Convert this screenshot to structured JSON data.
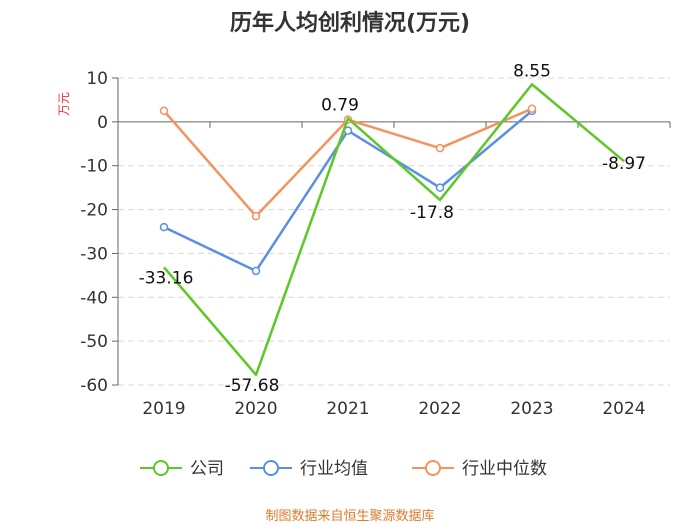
{
  "chart_data": {
    "type": "line",
    "title": "历年人均创利情况(万元)",
    "ylabel": "万元",
    "categories": [
      "2019",
      "2020",
      "2021",
      "2022",
      "2023",
      "2024"
    ],
    "yticks": [
      "10",
      "0",
      "-10",
      "-20",
      "-30",
      "-40",
      "-50",
      "-60"
    ],
    "ylim": [
      -60,
      10
    ],
    "grid": true,
    "legend_position": "bottom",
    "series": [
      {
        "name": "公司",
        "color": "#5cc827",
        "values": [
          -33.16,
          -57.68,
          0.79,
          -17.8,
          8.55,
          -8.97
        ],
        "labels": [
          "-33.16",
          "-57.68",
          "0.79",
          "-17.8",
          "8.55",
          "-8.97"
        ]
      },
      {
        "name": "行业均值",
        "color": "#5b8ee6",
        "values": [
          -24,
          -34,
          -2,
          -15,
          2.5,
          null
        ]
      },
      {
        "name": "行业中位数",
        "color": "#f5935f",
        "values": [
          2.5,
          -21.5,
          0.5,
          -6,
          3,
          null
        ]
      }
    ],
    "source": "制图数据来自恒生聚源数据库"
  }
}
